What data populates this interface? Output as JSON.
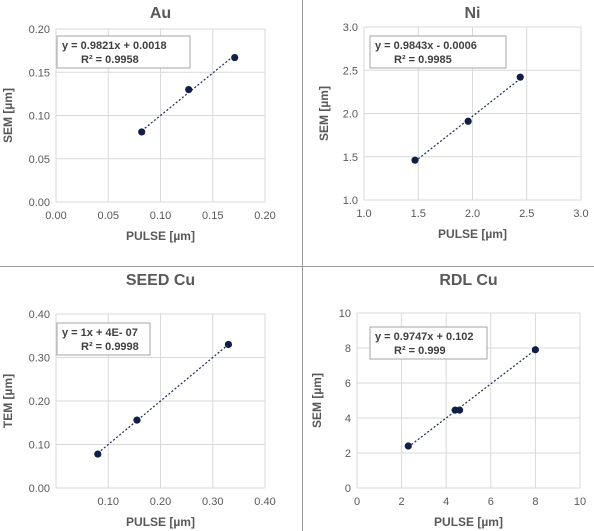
{
  "chart_data": [
    {
      "type": "scatter",
      "title": "Au",
      "xlabel": "PULSE [µm]",
      "ylabel": "SEM [µm]",
      "xlim": [
        0,
        0.2
      ],
      "ylim": [
        0,
        0.2
      ],
      "x_ticks": [
        "0.00",
        "0.05",
        "0.10",
        "0.15",
        "0.20"
      ],
      "y_ticks": [
        "0.00",
        "0.05",
        "0.10",
        "0.15",
        "0.20"
      ],
      "points": [
        {
          "x": 0.082,
          "y": 0.081
        },
        {
          "x": 0.127,
          "y": 0.13
        },
        {
          "x": 0.171,
          "y": 0.167
        }
      ],
      "trendline": {
        "slope": 0.9821,
        "intercept": 0.0018,
        "style": "dotted"
      },
      "equation": "y = 0.9821x + 0.0018",
      "r2": "R² = 0.9958",
      "grid": true,
      "legend": "none"
    },
    {
      "type": "scatter",
      "title": "Ni",
      "xlabel": "PULSE [µm]",
      "ylabel": "SEM [µm]",
      "xlim": [
        1.0,
        3.0
      ],
      "ylim": [
        1.0,
        3.0
      ],
      "x_ticks": [
        "1.0",
        "1.5",
        "2.0",
        "2.5",
        "3.0"
      ],
      "y_ticks": [
        "1.0",
        "1.5",
        "2.0",
        "2.5",
        "3.0"
      ],
      "points": [
        {
          "x": 1.47,
          "y": 1.46
        },
        {
          "x": 1.96,
          "y": 1.91
        },
        {
          "x": 2.44,
          "y": 2.42
        }
      ],
      "trendline": {
        "slope": 0.9843,
        "intercept": -0.0006,
        "style": "dotted"
      },
      "equation": "y = 0.9843x - 0.0006",
      "r2": "R² = 0.9985",
      "grid": true,
      "legend": "none"
    },
    {
      "type": "scatter",
      "title": "SEED Cu",
      "xlabel": "PULSE [µm]",
      "ylabel": "TEM [µm]",
      "xlim": [
        0.0,
        0.4
      ],
      "ylim": [
        0.0,
        0.4
      ],
      "x_ticks": [
        "0.10",
        "0.20",
        "0.30",
        "0.40"
      ],
      "y_ticks": [
        "0.00",
        "0.10",
        "0.20",
        "0.30",
        "0.40"
      ],
      "points": [
        {
          "x": 0.08,
          "y": 0.078
        },
        {
          "x": 0.155,
          "y": 0.156
        },
        {
          "x": 0.33,
          "y": 0.33
        }
      ],
      "trendline": {
        "slope": 1,
        "intercept": 4e-07,
        "style": "dotted"
      },
      "equation": "y = 1x + 4E- 07",
      "r2": "R² = 0.9998",
      "grid": true,
      "legend": "none"
    },
    {
      "type": "scatter",
      "title": "RDL Cu",
      "xlabel": "PULSE [µm]",
      "ylabel": "SEM [µm]",
      "xlim": [
        0,
        10
      ],
      "ylim": [
        0,
        10
      ],
      "x_ticks": [
        "0",
        "2",
        "4",
        "6",
        "8",
        "10"
      ],
      "y_ticks": [
        "0",
        "2",
        "4",
        "6",
        "8",
        "10"
      ],
      "points": [
        {
          "x": 2.3,
          "y": 2.4
        },
        {
          "x": 4.4,
          "y": 4.45
        },
        {
          "x": 4.6,
          "y": 4.45
        },
        {
          "x": 8.0,
          "y": 7.9
        }
      ],
      "trendline": {
        "slope": 0.9747,
        "intercept": 0.102,
        "style": "dotted"
      },
      "equation": "y = 0.9747x + 0.102",
      "r2": "R² = 0.999",
      "grid": true,
      "legend": "none"
    }
  ],
  "colors": {
    "marker": "#0f1f45",
    "trendline": "#1a2a55",
    "grid": "#d9d9d9",
    "axis_text": "#595959",
    "title_text": "#595959",
    "label_text": "#595959",
    "annotation_border": "#a6a6a6"
  }
}
